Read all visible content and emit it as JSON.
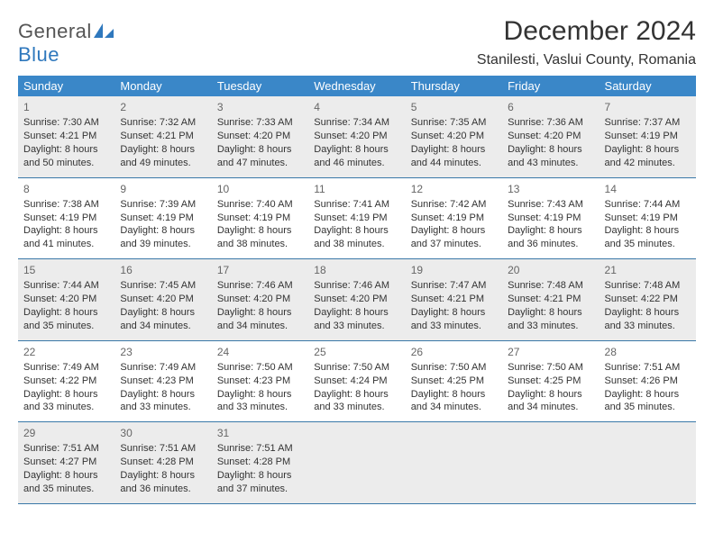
{
  "logo": {
    "general": "General",
    "blue": "Blue"
  },
  "title": "December 2024",
  "location": "Stanilesti, Vaslui County, Romania",
  "colors": {
    "header_bg": "#3a87c8",
    "header_text": "#ffffff",
    "shaded_bg": "#ececec",
    "border": "#3a78a8",
    "logo_blue": "#2f78bd",
    "logo_general": "#555555",
    "title": "#333333"
  },
  "day_names": [
    "Sunday",
    "Monday",
    "Tuesday",
    "Wednesday",
    "Thursday",
    "Friday",
    "Saturday"
  ],
  "weeks": [
    {
      "shaded": true,
      "days": [
        {
          "n": "1",
          "sr": "7:30 AM",
          "ss": "4:21 PM",
          "dl": "8 hours and 50 minutes."
        },
        {
          "n": "2",
          "sr": "7:32 AM",
          "ss": "4:21 PM",
          "dl": "8 hours and 49 minutes."
        },
        {
          "n": "3",
          "sr": "7:33 AM",
          "ss": "4:20 PM",
          "dl": "8 hours and 47 minutes."
        },
        {
          "n": "4",
          "sr": "7:34 AM",
          "ss": "4:20 PM",
          "dl": "8 hours and 46 minutes."
        },
        {
          "n": "5",
          "sr": "7:35 AM",
          "ss": "4:20 PM",
          "dl": "8 hours and 44 minutes."
        },
        {
          "n": "6",
          "sr": "7:36 AM",
          "ss": "4:20 PM",
          "dl": "8 hours and 43 minutes."
        },
        {
          "n": "7",
          "sr": "7:37 AM",
          "ss": "4:19 PM",
          "dl": "8 hours and 42 minutes."
        }
      ]
    },
    {
      "shaded": false,
      "days": [
        {
          "n": "8",
          "sr": "7:38 AM",
          "ss": "4:19 PM",
          "dl": "8 hours and 41 minutes."
        },
        {
          "n": "9",
          "sr": "7:39 AM",
          "ss": "4:19 PM",
          "dl": "8 hours and 39 minutes."
        },
        {
          "n": "10",
          "sr": "7:40 AM",
          "ss": "4:19 PM",
          "dl": "8 hours and 38 minutes."
        },
        {
          "n": "11",
          "sr": "7:41 AM",
          "ss": "4:19 PM",
          "dl": "8 hours and 38 minutes."
        },
        {
          "n": "12",
          "sr": "7:42 AM",
          "ss": "4:19 PM",
          "dl": "8 hours and 37 minutes."
        },
        {
          "n": "13",
          "sr": "7:43 AM",
          "ss": "4:19 PM",
          "dl": "8 hours and 36 minutes."
        },
        {
          "n": "14",
          "sr": "7:44 AM",
          "ss": "4:19 PM",
          "dl": "8 hours and 35 minutes."
        }
      ]
    },
    {
      "shaded": true,
      "days": [
        {
          "n": "15",
          "sr": "7:44 AM",
          "ss": "4:20 PM",
          "dl": "8 hours and 35 minutes."
        },
        {
          "n": "16",
          "sr": "7:45 AM",
          "ss": "4:20 PM",
          "dl": "8 hours and 34 minutes."
        },
        {
          "n": "17",
          "sr": "7:46 AM",
          "ss": "4:20 PM",
          "dl": "8 hours and 34 minutes."
        },
        {
          "n": "18",
          "sr": "7:46 AM",
          "ss": "4:20 PM",
          "dl": "8 hours and 33 minutes."
        },
        {
          "n": "19",
          "sr": "7:47 AM",
          "ss": "4:21 PM",
          "dl": "8 hours and 33 minutes."
        },
        {
          "n": "20",
          "sr": "7:48 AM",
          "ss": "4:21 PM",
          "dl": "8 hours and 33 minutes."
        },
        {
          "n": "21",
          "sr": "7:48 AM",
          "ss": "4:22 PM",
          "dl": "8 hours and 33 minutes."
        }
      ]
    },
    {
      "shaded": false,
      "days": [
        {
          "n": "22",
          "sr": "7:49 AM",
          "ss": "4:22 PM",
          "dl": "8 hours and 33 minutes."
        },
        {
          "n": "23",
          "sr": "7:49 AM",
          "ss": "4:23 PM",
          "dl": "8 hours and 33 minutes."
        },
        {
          "n": "24",
          "sr": "7:50 AM",
          "ss": "4:23 PM",
          "dl": "8 hours and 33 minutes."
        },
        {
          "n": "25",
          "sr": "7:50 AM",
          "ss": "4:24 PM",
          "dl": "8 hours and 33 minutes."
        },
        {
          "n": "26",
          "sr": "7:50 AM",
          "ss": "4:25 PM",
          "dl": "8 hours and 34 minutes."
        },
        {
          "n": "27",
          "sr": "7:50 AM",
          "ss": "4:25 PM",
          "dl": "8 hours and 34 minutes."
        },
        {
          "n": "28",
          "sr": "7:51 AM",
          "ss": "4:26 PM",
          "dl": "8 hours and 35 minutes."
        }
      ]
    },
    {
      "shaded": true,
      "days": [
        {
          "n": "29",
          "sr": "7:51 AM",
          "ss": "4:27 PM",
          "dl": "8 hours and 35 minutes."
        },
        {
          "n": "30",
          "sr": "7:51 AM",
          "ss": "4:28 PM",
          "dl": "8 hours and 36 minutes."
        },
        {
          "n": "31",
          "sr": "7:51 AM",
          "ss": "4:28 PM",
          "dl": "8 hours and 37 minutes."
        },
        {
          "n": "",
          "sr": "",
          "ss": "",
          "dl": ""
        },
        {
          "n": "",
          "sr": "",
          "ss": "",
          "dl": ""
        },
        {
          "n": "",
          "sr": "",
          "ss": "",
          "dl": ""
        },
        {
          "n": "",
          "sr": "",
          "ss": "",
          "dl": ""
        }
      ]
    }
  ],
  "labels": {
    "sunrise": "Sunrise:",
    "sunset": "Sunset:",
    "daylight": "Daylight:"
  }
}
